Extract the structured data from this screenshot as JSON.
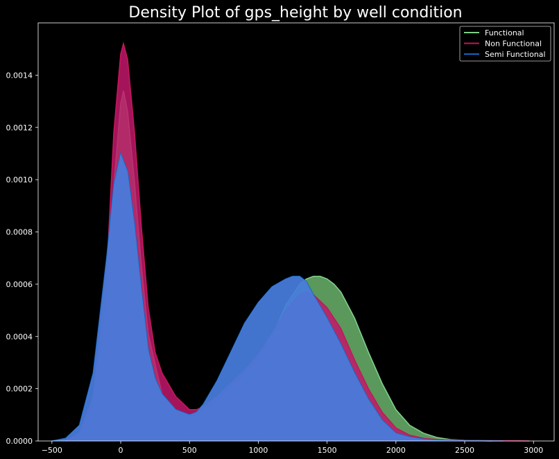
{
  "chart_data": {
    "type": "area",
    "title": "Density Plot of gps_height by well condition",
    "xlabel": "",
    "ylabel": "",
    "xlim": [
      -600,
      3150
    ],
    "ylim": [
      0,
      0.0016
    ],
    "x_ticks": [
      -500,
      0,
      500,
      1000,
      1500,
      2000,
      2500,
      3000
    ],
    "y_ticks": [
      0,
      0.0002,
      0.0004,
      0.0006,
      0.0008,
      0.001,
      0.0012,
      0.0014
    ],
    "x_tick_labels": [
      "−500",
      "0",
      "500",
      "1000",
      "1500",
      "2000",
      "2500",
      "3000"
    ],
    "y_tick_labels": [
      "0.0000",
      "0.0002",
      "0.0004",
      "0.0006",
      "0.0008",
      "0.0010",
      "0.0012",
      "0.0014"
    ],
    "grid": false,
    "legend_position": "top-right",
    "series": [
      {
        "name": "Functional",
        "line_color": "#7fd08a",
        "fill_color": "#6bb36b",
        "x": [
          -400,
          -300,
          -200,
          -100,
          -50,
          0,
          20,
          50,
          100,
          150,
          200,
          300,
          400,
          500,
          550,
          600,
          700,
          800,
          900,
          1000,
          1100,
          1200,
          1300,
          1350,
          1400,
          1450,
          1500,
          1550,
          1600,
          1700,
          1800,
          1900,
          2000,
          2100,
          2200,
          2300,
          2400,
          2500,
          2600,
          2700
        ],
        "y": [
          0.0,
          2e-05,
          0.00014,
          0.00055,
          0.00098,
          0.00129,
          0.00134,
          0.00126,
          0.00099,
          0.00067,
          0.00041,
          0.00018,
          0.00011,
          9e-05,
          9.5e-05,
          0.00011,
          0.00015,
          0.0002,
          0.00025,
          0.00031,
          0.0004,
          0.00052,
          0.0006,
          0.00062,
          0.00063,
          0.00063,
          0.00062,
          0.0006,
          0.00057,
          0.00047,
          0.00034,
          0.00022,
          0.00012,
          6e-05,
          3e-05,
          1.3e-05,
          5e-06,
          2e-06,
          1e-06,
          0.0
        ]
      },
      {
        "name": "Non Functional",
        "line_color": "#c2185b",
        "fill_color": "#c2186b",
        "x": [
          -400,
          -300,
          -200,
          -100,
          -50,
          0,
          20,
          50,
          100,
          150,
          200,
          250,
          300,
          400,
          500,
          550,
          600,
          700,
          800,
          900,
          1000,
          1100,
          1200,
          1300,
          1350,
          1400,
          1500,
          1600,
          1700,
          1800,
          1900,
          2000,
          2100,
          2200,
          2300,
          2500,
          2700,
          2900,
          2970
        ],
        "y": [
          0.0,
          3e-05,
          0.00017,
          0.00066,
          0.00118,
          0.00148,
          0.00152,
          0.00146,
          0.00118,
          0.00082,
          0.00051,
          0.00034,
          0.00026,
          0.00017,
          0.00012,
          0.00012,
          0.00013,
          0.00017,
          0.00022,
          0.00027,
          0.00033,
          0.00041,
          0.0005,
          0.00056,
          0.00057,
          0.00056,
          0.00051,
          0.00043,
          0.00031,
          0.0002,
          0.00011,
          5e-05,
          2.2e-05,
          1e-05,
          5e-06,
          2e-06,
          1e-06,
          5e-07,
          0.0
        ]
      },
      {
        "name": "Semi Functional",
        "line_color": "#1565c0",
        "fill_color": "#1565c0",
        "x": [
          -500,
          -400,
          -300,
          -200,
          -100,
          -50,
          0,
          50,
          100,
          150,
          200,
          250,
          300,
          400,
          500,
          550,
          600,
          700,
          800,
          900,
          1000,
          1100,
          1200,
          1250,
          1300,
          1350,
          1400,
          1500,
          1600,
          1700,
          1800,
          1900,
          2000,
          2100,
          2200,
          2300,
          2500,
          2780
        ],
        "y": [
          0.0,
          1e-05,
          6e-05,
          0.00026,
          0.00071,
          0.00098,
          0.0011,
          0.00103,
          0.00083,
          0.00058,
          0.00035,
          0.00024,
          0.00018,
          0.00012,
          0.0001,
          0.00011,
          0.00014,
          0.00023,
          0.00034,
          0.00045,
          0.00053,
          0.00059,
          0.00062,
          0.00063,
          0.00063,
          0.00061,
          0.00056,
          0.00047,
          0.00037,
          0.00026,
          0.00016,
          8e-05,
          3e-05,
          1.5e-05,
          7e-06,
          3e-06,
          1e-06,
          0.0
        ]
      }
    ]
  }
}
